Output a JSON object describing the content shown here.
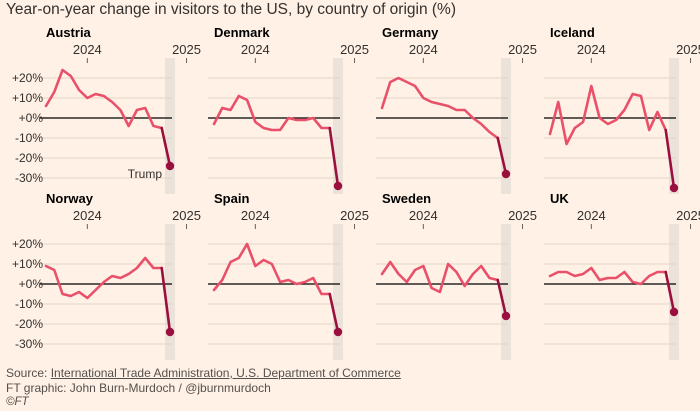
{
  "title": "Year-on-year change in visitors to the US, by country of origin (%)",
  "footer": {
    "source_prefix": "Source: ",
    "source_link": "International Trade Administration, U.S. Department of Commerce",
    "credit": "FT graphic: John Burn-Murdoch / @jburnmurdoch",
    "copyright": "©FT"
  },
  "colors": {
    "background": "#fff1e5",
    "line": "#e9506a",
    "highlight_line": "#990f3d",
    "zero_line": "#000000",
    "grid": "#e3d6c9",
    "shade": "#ebe2d9"
  },
  "chart_data": {
    "type": "line",
    "ylim": [
      -35,
      25
    ],
    "y_ticks": [
      20,
      10,
      0,
      -10,
      -20,
      -30
    ],
    "y_tick_labels": [
      "+20%",
      "+10%",
      "+0%",
      "-10%",
      "-20%",
      "-30%"
    ],
    "x_tick_labels": [
      "2024",
      "2025"
    ],
    "x_tick_index": [
      5,
      17
    ],
    "annotation": "Trump",
    "series": [
      {
        "name": "Austria",
        "values": [
          6,
          13,
          24,
          21,
          14,
          10,
          12,
          11,
          8,
          4,
          -4,
          4,
          5,
          -4,
          -5,
          -24
        ]
      },
      {
        "name": "Denmark",
        "values": [
          -3,
          5,
          4,
          11,
          9,
          -2,
          -5,
          -6,
          -6,
          0,
          -1,
          -1,
          0,
          -5,
          -5,
          -34
        ]
      },
      {
        "name": "Germany",
        "values": [
          5,
          18,
          20,
          18,
          16,
          10,
          8,
          7,
          6,
          4,
          4,
          0,
          -3,
          -7,
          -10,
          -28
        ]
      },
      {
        "name": "Iceland",
        "values": [
          -8,
          8,
          -13,
          -5,
          -2,
          16,
          0,
          -3,
          -1,
          4,
          12,
          11,
          -6,
          3,
          -6,
          -35
        ]
      },
      {
        "name": "Norway",
        "values": [
          9,
          7,
          -5,
          -6,
          -4,
          -7,
          -3,
          1,
          4,
          3,
          5,
          8,
          13,
          8,
          8,
          -24
        ]
      },
      {
        "name": "Spain",
        "values": [
          -3,
          2,
          11,
          13,
          20,
          9,
          12,
          10,
          1,
          2,
          0,
          1,
          3,
          -5,
          -5,
          -24
        ]
      },
      {
        "name": "Sweden",
        "values": [
          5,
          11,
          5,
          1,
          7,
          9,
          -2,
          -4,
          10,
          6,
          -1,
          5,
          9,
          3,
          2,
          -16
        ]
      },
      {
        "name": "UK",
        "values": [
          4,
          6,
          6,
          4,
          5,
          8,
          2,
          3,
          3,
          6,
          1,
          0,
          4,
          6,
          6,
          -14
        ]
      }
    ]
  }
}
